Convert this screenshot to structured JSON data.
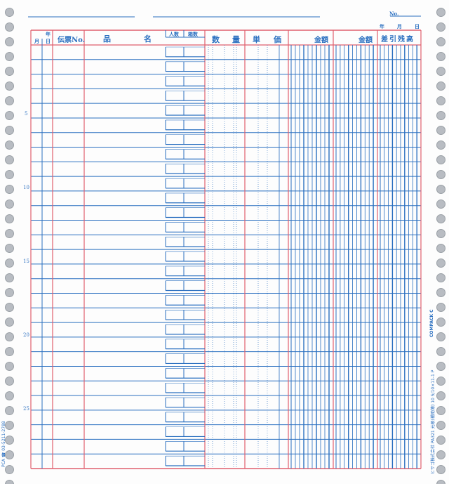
{
  "header": {
    "no_label": "No.",
    "date_year": "年",
    "date_month": "月",
    "date_day": "日"
  },
  "columns": {
    "month": "月",
    "year_day_year": "年",
    "day": "日",
    "slip_no": "伝票No.",
    "item_name_1": "品",
    "item_name_2": "名",
    "persons": "人数",
    "boxes": "箱数",
    "quantity_1": "数",
    "quantity_2": "量",
    "unit_price_1": "単",
    "unit_price_2": "価",
    "amount_1": "金額",
    "amount_2": "金額",
    "balance": "差引残高"
  },
  "row_numbers": [
    "5",
    "10",
    "15",
    "20",
    "25"
  ],
  "rows": 29,
  "side_text": {
    "left": "PCA ☎ 03-5211-2788",
    "right": "ヒサゴ株式会社 PA321 元帳(補助簿) 10 5/10×11-1 P",
    "right_brand": "COMPACK C"
  },
  "colors": {
    "blue": "#2a6fc0",
    "red": "#e0606e",
    "hole": "#b8bcc2"
  }
}
